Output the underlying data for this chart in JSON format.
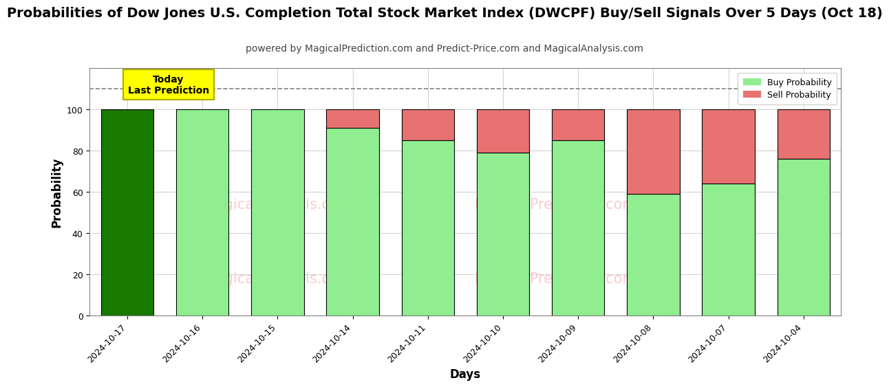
{
  "title": "Probabilities of Dow Jones U.S. Completion Total Stock Market Index (DWCPF) Buy/Sell Signals Over 5 Days (Oct 18)",
  "subtitle": "powered by MagicalPrediction.com and Predict-Price.com and MagicalAnalysis.com",
  "xlabel": "Days",
  "ylabel": "Probability",
  "dates": [
    "2024-10-17",
    "2024-10-16",
    "2024-10-15",
    "2024-10-14",
    "2024-10-11",
    "2024-10-10",
    "2024-10-09",
    "2024-10-08",
    "2024-10-07",
    "2024-10-04"
  ],
  "buy_values": [
    100,
    100,
    100,
    91,
    85,
    79,
    85,
    59,
    64,
    76
  ],
  "sell_values": [
    0,
    0,
    0,
    9,
    15,
    21,
    15,
    41,
    36,
    24
  ],
  "first_bar_color": "#1a7a00",
  "buy_color": "#90ee90",
  "sell_color": "#e87272",
  "annotation_text": "Today\nLast Prediction",
  "annotation_bg": "#ffff00",
  "ylim": [
    0,
    120
  ],
  "dashed_line_y": 110,
  "legend_buy_label": "Buy Probability",
  "legend_sell_label": "Sell Probability",
  "title_fontsize": 14,
  "subtitle_fontsize": 10,
  "axis_label_fontsize": 12,
  "tick_fontsize": 9
}
